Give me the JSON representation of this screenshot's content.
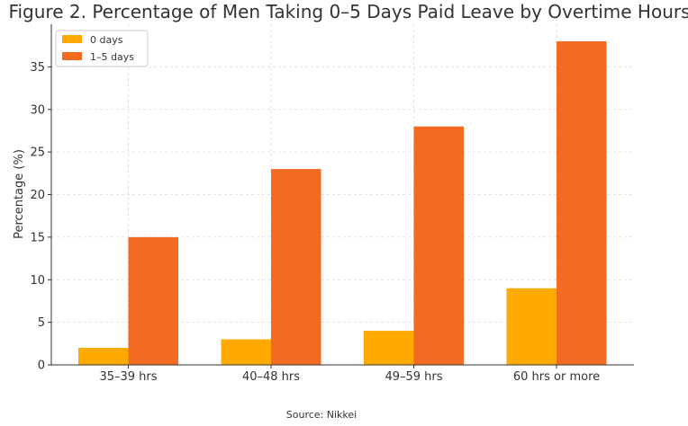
{
  "chart_data": {
    "type": "bar",
    "title": "Figure 2. Percentage of Men Taking 0–5 Days Paid Leave by Overtime Hours",
    "xlabel": "",
    "ylabel": "Percentage (%)",
    "categories": [
      "35–39 hrs",
      "40–48 hrs",
      "49–59 hrs",
      "60 hrs or more"
    ],
    "series": [
      {
        "name": "0 days",
        "values": [
          2,
          3,
          4,
          9
        ],
        "color": "#FFAA00"
      },
      {
        "name": "1–5 days",
        "values": [
          15,
          23,
          28,
          38
        ],
        "color": "#F26B21"
      }
    ],
    "ylim": [
      0,
      40
    ],
    "yticks": [
      0,
      5,
      10,
      15,
      20,
      25,
      30,
      35
    ],
    "grid": true,
    "legend_position": "top-left",
    "source": "Source: Nikkei"
  }
}
